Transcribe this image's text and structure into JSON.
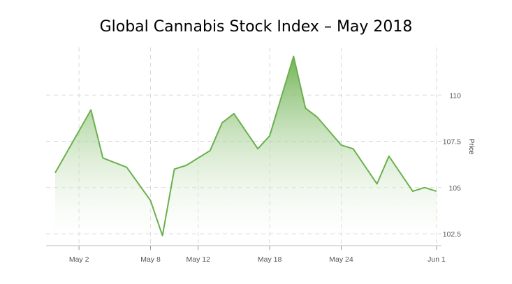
{
  "chart_data": {
    "type": "area",
    "title": "Global Cannabis Stock Index – May 2018",
    "xlabel": "",
    "ylabel": "Price",
    "x_ticks": [
      "May 2",
      "May 8",
      "May 12",
      "May 18",
      "May 24",
      "Jun 1"
    ],
    "y_ticks": [
      "102.5",
      "105",
      "107.5",
      "110"
    ],
    "ylim": [
      102.2,
      112.2
    ],
    "grid": true,
    "y_axis_position": "right",
    "colors": {
      "line": "#6ab04c",
      "fill_top": "#6ab04c",
      "fill_bottom": "#ffffff"
    },
    "series": [
      {
        "x": [
          "2018-04-30",
          "2018-05-03",
          "2018-05-04",
          "2018-05-06",
          "2018-05-08",
          "2018-05-09",
          "2018-05-10",
          "2018-05-11",
          "2018-05-13",
          "2018-05-14",
          "2018-05-15",
          "2018-05-17",
          "2018-05-18",
          "2018-05-20",
          "2018-05-21",
          "2018-05-22",
          "2018-05-24",
          "2018-05-25",
          "2018-05-27",
          "2018-05-28",
          "2018-05-30",
          "2018-05-31",
          "2018-06-01"
        ],
        "values": [
          105.8,
          109.2,
          106.6,
          106.1,
          104.3,
          102.4,
          106.0,
          106.2,
          107.0,
          108.5,
          109.0,
          107.1,
          107.8,
          112.1,
          109.3,
          108.8,
          107.3,
          107.1,
          105.2,
          106.7,
          104.8,
          105.0,
          104.8
        ]
      }
    ]
  }
}
